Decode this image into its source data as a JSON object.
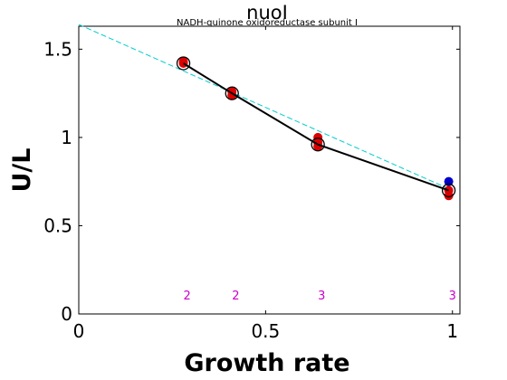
{
  "chart_data": {
    "type": "scatter",
    "title": "nuoI",
    "subtitle": "NADH-quinone oxidoreductase subunit I",
    "xlabel": "Growth rate",
    "ylabel": "U/L",
    "xlim": [
      0,
      1.02
    ],
    "ylim": [
      0,
      1.63
    ],
    "x_ticks": [
      {
        "value": 0,
        "label": "0"
      },
      {
        "value": 0.5,
        "label": "0.5"
      },
      {
        "value": 1,
        "label": "1"
      }
    ],
    "y_ticks": [
      {
        "value": 0,
        "label": "0"
      },
      {
        "value": 0.5,
        "label": "0.5"
      },
      {
        "value": 1,
        "label": "1"
      },
      {
        "value": 1.5,
        "label": "1.5"
      }
    ],
    "grid": false,
    "colors": {
      "mean_line": "#000000",
      "fit_line": "#00cccc",
      "red_points": "#dd0000",
      "blue_points": "#0000cc",
      "count_labels": "#cc00cc"
    },
    "series": [
      {
        "kind": "mean",
        "x": [
          0.28,
          0.41,
          0.64,
          0.99
        ],
        "y": [
          1.42,
          1.25,
          0.96,
          0.7
        ]
      },
      {
        "kind": "fit",
        "x": [
          0,
          1.0
        ],
        "y": [
          1.64,
          0.7
        ]
      },
      {
        "kind": "red-replicates",
        "x": [
          0.28,
          0.28,
          0.41,
          0.41,
          0.64,
          0.64,
          0.64,
          0.99,
          0.99
        ],
        "y": [
          1.43,
          1.42,
          1.26,
          1.24,
          1.0,
          0.97,
          0.95,
          0.7,
          0.67
        ]
      },
      {
        "kind": "blue-replicates",
        "x": [
          0.99
        ],
        "y": [
          0.75
        ]
      }
    ],
    "counts": [
      {
        "x": 0.29,
        "label": "2"
      },
      {
        "x": 0.42,
        "label": "2"
      },
      {
        "x": 0.65,
        "label": "3"
      },
      {
        "x": 1.0,
        "label": "3"
      }
    ]
  }
}
